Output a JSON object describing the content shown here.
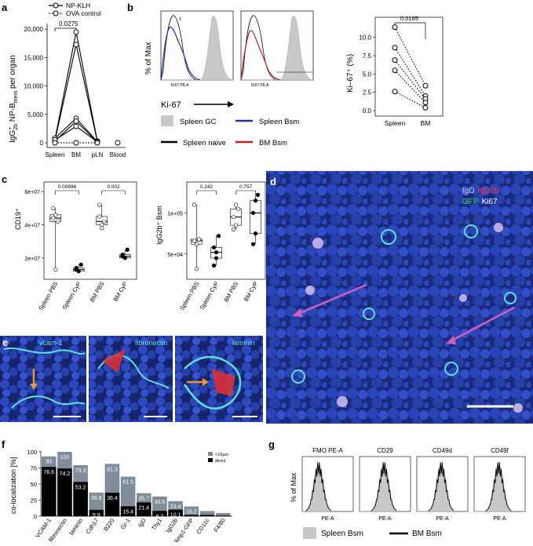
{
  "panels": {
    "a": "a",
    "b": "b",
    "c": "c",
    "d": "d",
    "e": "e",
    "f": "f",
    "g": "g"
  },
  "panel_a": {
    "legend": [
      "NP-KLH",
      "OVA control"
    ],
    "ylabel_main": "IgG",
    "ylabel_sup": "+",
    "ylabel_sub": "2b",
    "ylabel_rest": " NP-B",
    "ylabel_sub2": "mem",
    "ylabel_tail": " per organ",
    "yticks": [
      "20,000",
      "15,000",
      "10,000",
      "5,000",
      "0"
    ],
    "xticks": [
      "Spleen",
      "BM",
      "pLN",
      "Blood"
    ],
    "pvalue": "0.0275"
  },
  "panel_b": {
    "ylabel": "% of Max",
    "xlabel_small": "Ki67 PE A",
    "ki67_label": "Ki-67",
    "legend": [
      "Spleen GC",
      "Spleen Bsm",
      "Spleen naive",
      "BM Bsm"
    ],
    "dot_ylabel": "Ki–67⁺ (%)",
    "dot_yticks": [
      "10.0",
      "7.5",
      "5.0",
      "2.5",
      "0.0"
    ],
    "dot_xticks": [
      "Spleen",
      "BM"
    ],
    "dot_pvalue": "0.0185",
    "tick_0": "0"
  },
  "panel_c": {
    "left_ylabel": "CD19⁺",
    "left_yticks": [
      "6e+07",
      "4e+07",
      "2e+07"
    ],
    "left_pvalues": [
      "0.00896",
      "0.002"
    ],
    "right_ylabel": "IgG2b⁺ Bsm",
    "right_yticks": [
      "1e+05",
      "5e+04"
    ],
    "right_pvalues": [
      "0.242",
      "0.757"
    ],
    "xticks": [
      "Spleen PBS",
      "Spleen CyP",
      "BM PBS",
      "BM CyP"
    ]
  },
  "panel_d": {
    "labels": [
      "IgD",
      "IgG2b",
      "GFP",
      "Ki67"
    ]
  },
  "panel_e": {
    "labels": [
      "vcam-1",
      "fibronectin",
      "laminin"
    ]
  },
  "panel_f": {
    "ylabel": "co-localization [%]",
    "yticks": [
      "100",
      "75",
      "50",
      "25",
      "0"
    ],
    "legend": [
      "<10µm",
      "direct"
    ],
    "colors": {
      "near": "#7f8c9a",
      "direct": "#000000"
    }
  },
  "panel_g": {
    "titles": [
      "FMO PE-A",
      "CD29",
      "CD49d",
      "CD49f"
    ],
    "ylabel": "% of Max",
    "xlabel": "PE-A",
    "legend": [
      "Spleen Bsm",
      "BM Bsm"
    ]
  },
  "chart_data": [
    {
      "type": "line",
      "panel": "a",
      "categories": [
        "Spleen",
        "BM",
        "pLN",
        "Blood"
      ],
      "series": [
        {
          "name": "NP-KLH",
          "values": [
            600,
            19500,
            300,
            0
          ]
        },
        {
          "name": "NP-KLH",
          "values": [
            400,
            17300,
            200,
            0
          ]
        },
        {
          "name": "NP-KLH",
          "values": [
            800,
            4300,
            200,
            0
          ]
        },
        {
          "name": "NP-KLH",
          "values": [
            300,
            3800,
            100,
            0
          ]
        },
        {
          "name": "NP-KLH",
          "values": [
            500,
            2900,
            150,
            0
          ]
        },
        {
          "name": "OVA control",
          "values": [
            0,
            0,
            0,
            0
          ]
        }
      ],
      "ylim": [
        0,
        21000
      ]
    },
    {
      "type": "scatter",
      "panel": "b",
      "categories": [
        "Spleen",
        "BM"
      ],
      "pairs": [
        [
          11.4,
          3.4
        ],
        [
          8.6,
          2.0
        ],
        [
          6.9,
          1.6
        ],
        [
          5.5,
          1.1
        ],
        [
          2.6,
          0.4
        ]
      ],
      "ylim": [
        0,
        12
      ]
    },
    {
      "type": "bar",
      "panel": "c-left",
      "categories": [
        "Spleen PBS",
        "Spleen CyP",
        "BM PBS",
        "BM CyP"
      ],
      "points": [
        [
          44000000,
          46000000,
          42000000,
          50000000,
          13000000
        ],
        [
          14000000,
          12000000,
          16000000,
          13000000
        ],
        [
          45000000,
          38000000,
          42000000,
          52000000,
          40000000
        ],
        [
          22000000,
          20000000,
          25000000,
          21000000
        ]
      ],
      "ylim": [
        10000000,
        62000000
      ]
    },
    {
      "type": "bar",
      "panel": "c-right",
      "categories": [
        "Spleen PBS",
        "Spleen CyP",
        "BM PBS",
        "BM CyP"
      ],
      "points": [
        [
          66000,
          62000,
          68000,
          110000,
          32000
        ],
        [
          58000,
          45000,
          72000,
          36000,
          52000
        ],
        [
          95000,
          85000,
          105000,
          80000,
          110000
        ],
        [
          100000,
          115000,
          122000,
          62000,
          75000
        ]
      ],
      "ylim": [
        25000,
        130000
      ]
    },
    {
      "type": "bar",
      "panel": "f",
      "categories": [
        "VCAM-1",
        "fibronectin",
        "laminin",
        "Cdh17",
        "B220",
        "Gr-1",
        "IgD",
        "Thy1",
        "IgG2b",
        "Blimp1-GFP",
        "CD11c",
        "F4/80"
      ],
      "series": [
        {
          "name": "<10µm",
          "values": [
            93,
            100,
            79.3,
            36.8,
            81.3,
            61.5,
            35.7,
            30.5,
            23.4,
            15.2,
            8,
            5
          ]
        },
        {
          "name": "direct",
          "values": [
            76.6,
            74.2,
            53.2,
            9.9,
            36.4,
            15.4,
            21.4,
            8.2,
            10.1,
            2,
            2,
            1
          ]
        }
      ],
      "near_labels": [
        "93",
        "100",
        "79.3",
        "36.8",
        "81.3",
        "61.5",
        "35.7",
        "30.5",
        "23.4",
        "15.2",
        "",
        ""
      ],
      "direct_labels": [
        "76.6",
        "74.2",
        "53.2",
        "9.9",
        "36.4",
        "15.4",
        "21.4",
        "8.2",
        "10.1",
        "",
        "",
        ""
      ],
      "ylim": [
        0,
        100
      ]
    }
  ]
}
